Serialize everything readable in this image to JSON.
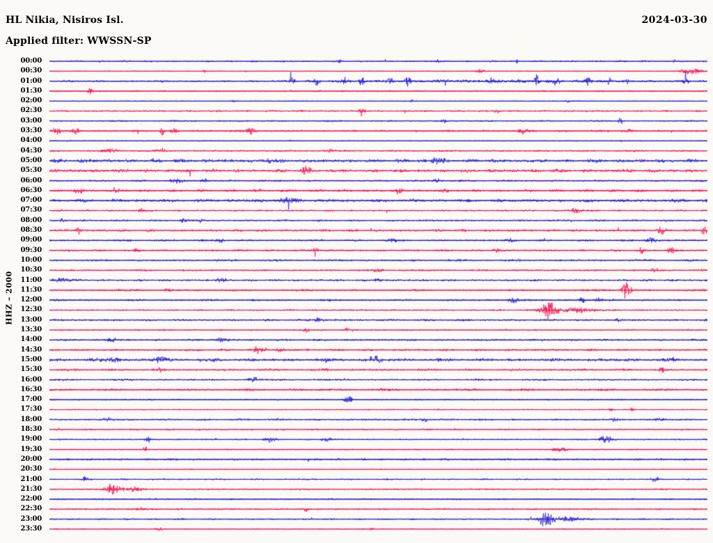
{
  "header": {
    "station_title": "HL Nikia, Nisiros Isl.",
    "filter_label": "Applied filter: WWSSN-SP",
    "date": "2024-03-30"
  },
  "axis": {
    "channel_label": "HHZ – 2000"
  },
  "palette": {
    "trace_blue": "#1812D2",
    "trace_red": "#F2094C",
    "background": "#FBFAF7",
    "text": "#000000"
  },
  "chart_data": {
    "type": "line",
    "subtype": "helicorder-seismogram",
    "title": "HL Nikia, Nisiros Isl.",
    "filter": "WWSSN-SP",
    "date": "2024-03-30",
    "channel": "HHZ",
    "gain_scale": "2000",
    "row_interval_minutes": 30,
    "x_range_minutes": [
      0,
      30
    ],
    "legend": "none",
    "grid": false,
    "alternating_trace_colors": [
      "blue",
      "red"
    ],
    "rows_note": "events are [position_fraction_along_row, peak_amplitude_px, gaussian_sigma_px]; noise is background noise half-amplitude in px",
    "rows": [
      {
        "time": "00:00",
        "color": "blue",
        "noise": 0.85,
        "events": [
          [
            0.44,
            1.8,
            2
          ],
          [
            0.59,
            1.6,
            2
          ],
          [
            0.71,
            1.6,
            2
          ],
          [
            0.95,
            1.4,
            2
          ]
        ]
      },
      {
        "time": "00:30",
        "color": "red",
        "noise": 0.45,
        "sp": 0.004,
        "events": [
          [
            0.235,
            1.6,
            2
          ],
          [
            0.655,
            2.2,
            5
          ],
          [
            0.975,
            3.5,
            11
          ]
        ]
      },
      {
        "time": "01:00",
        "color": "blue",
        "noise": 0.8,
        "sp": 0.008,
        "events": [
          [
            0.67,
            0.8,
            160
          ],
          [
            0.369,
            4,
            3
          ],
          [
            0.406,
            4.5,
            3
          ],
          [
            0.449,
            4,
            4
          ],
          [
            0.475,
            7,
            2
          ],
          [
            0.517,
            4,
            3
          ],
          [
            0.544,
            4.5,
            3
          ],
          [
            0.602,
            3.5,
            3
          ],
          [
            0.671,
            3.5,
            3
          ],
          [
            0.74,
            8,
            2
          ],
          [
            0.771,
            4,
            3
          ],
          [
            0.819,
            4.5,
            3
          ],
          [
            0.851,
            3.5,
            2
          ],
          [
            0.877,
            4,
            2
          ],
          [
            0.967,
            3.5,
            3
          ]
        ]
      },
      {
        "time": "01:30",
        "color": "red",
        "noise": 0.75,
        "events": [
          [
            0.062,
            3,
            3
          ]
        ]
      },
      {
        "time": "02:00",
        "color": "blue",
        "noise": 0.45,
        "events": [
          [
            0.28,
            1.5,
            2
          ],
          [
            0.55,
            1.3,
            2
          ],
          [
            0.79,
            1.8,
            3
          ]
        ]
      },
      {
        "time": "02:30",
        "color": "red",
        "noise": 0.85,
        "events": [
          [
            0.475,
            2.4,
            4
          ],
          [
            0.68,
            2.8,
            3
          ]
        ]
      },
      {
        "time": "03:00",
        "color": "blue",
        "noise": 0.75,
        "events": [
          [
            0.6,
            1.5,
            3
          ],
          [
            0.868,
            4,
            2
          ]
        ]
      },
      {
        "time": "03:30",
        "color": "red",
        "noise": 0.9,
        "sp": 0.004,
        "events": [
          [
            0.012,
            3,
            5
          ],
          [
            0.04,
            3.2,
            4
          ],
          [
            0.171,
            7,
            1.5
          ],
          [
            0.19,
            3,
            3
          ],
          [
            0.305,
            3.5,
            5
          ],
          [
            0.72,
            3,
            5
          ],
          [
            0.88,
            2,
            4
          ]
        ]
      },
      {
        "time": "04:00",
        "color": "blue",
        "noise": 0.5,
        "events": []
      },
      {
        "time": "04:30",
        "color": "red",
        "noise": 0.85,
        "events": [
          [
            0.095,
            2.5,
            7
          ],
          [
            0.17,
            2.5,
            5
          ],
          [
            0.425,
            2,
            4
          ]
        ]
      },
      {
        "time": "05:00",
        "color": "blue",
        "noise": 1.6,
        "events": [
          [
            0.33,
            2,
            6
          ],
          [
            0.59,
            3,
            8
          ]
        ]
      },
      {
        "time": "05:30",
        "color": "red",
        "noise": 1.5,
        "events": [
          [
            0.39,
            2.5,
            6
          ]
        ]
      },
      {
        "time": "06:00",
        "color": "blue",
        "noise": 0.85,
        "events": [
          [
            0.19,
            2.5,
            5
          ],
          [
            0.235,
            2.5,
            4
          ],
          [
            0.59,
            2,
            4
          ]
        ]
      },
      {
        "time": "06:30",
        "color": "red",
        "noise": 1.2,
        "events": [
          [
            0.045,
            2.5,
            5
          ],
          [
            0.1,
            2.5,
            4
          ],
          [
            0.53,
            3,
            4
          ],
          [
            0.6,
            2.5,
            3
          ]
        ]
      },
      {
        "time": "07:00",
        "color": "blue",
        "noise": 1.5,
        "events": [
          [
            0.36,
            3,
            9
          ]
        ]
      },
      {
        "time": "07:30",
        "color": "red",
        "noise": 0.85,
        "events": [
          [
            0.14,
            2,
            4
          ],
          [
            0.8,
            2.5,
            7
          ]
        ]
      },
      {
        "time": "08:00",
        "color": "blue",
        "noise": 0.9,
        "events": [
          [
            0.02,
            2.5,
            3
          ],
          [
            0.205,
            2,
            4
          ],
          [
            0.23,
            2,
            3
          ]
        ]
      },
      {
        "time": "08:30",
        "color": "red",
        "noise": 1.2,
        "sp": 0.004,
        "events": [
          [
            0.045,
            4,
            3
          ],
          [
            0.93,
            3,
            4
          ],
          [
            0.995,
            4,
            3
          ]
        ]
      },
      {
        "time": "09:00",
        "color": "blue",
        "noise": 0.9,
        "events": [
          [
            0.26,
            2,
            4
          ],
          [
            0.52,
            2,
            5
          ],
          [
            0.7,
            2.5,
            5
          ],
          [
            0.915,
            3,
            5
          ]
        ]
      },
      {
        "time": "09:30",
        "color": "red",
        "noise": 0.9,
        "events": [
          [
            0.135,
            2,
            3
          ],
          [
            0.405,
            2.5,
            4
          ],
          [
            0.68,
            2,
            4
          ],
          [
            0.9,
            3,
            3
          ],
          [
            0.945,
            3.5,
            4
          ]
        ]
      },
      {
        "time": "10:00",
        "color": "blue",
        "noise": 1.05,
        "events": []
      },
      {
        "time": "10:30",
        "color": "red",
        "noise": 0.9,
        "events": [
          [
            0.5,
            2.5,
            5
          ],
          [
            0.92,
            2.5,
            4
          ]
        ]
      },
      {
        "time": "11:00",
        "color": "blue",
        "noise": 1.0,
        "events": [
          [
            0.02,
            2,
            8
          ],
          [
            0.26,
            2.5,
            5
          ],
          [
            0.5,
            2.5,
            4
          ]
        ]
      },
      {
        "time": "11:30",
        "color": "red",
        "noise": 1.0,
        "events": [
          [
            0.18,
            2,
            5
          ],
          [
            0.877,
            10,
            4
          ]
        ]
      },
      {
        "time": "12:00",
        "color": "blue",
        "noise": 0.9,
        "events": [
          [
            0.705,
            3,
            5
          ],
          [
            0.81,
            2.5,
            4
          ],
          [
            0.835,
            2.5,
            3
          ]
        ]
      },
      {
        "time": "12:30",
        "color": "red",
        "noise": 0.85,
        "events": [
          [
            0.76,
            11,
            8
          ],
          [
            0.8,
            2.5,
            20
          ]
        ]
      },
      {
        "time": "13:00",
        "color": "blue",
        "noise": 1.0,
        "events": [
          [
            0.41,
            2.5,
            5
          ],
          [
            0.865,
            2.5,
            3
          ]
        ]
      },
      {
        "time": "13:30",
        "color": "red",
        "noise": 0.8,
        "events": [
          [
            0.39,
            2,
            4
          ],
          [
            0.455,
            2,
            4
          ]
        ]
      },
      {
        "time": "14:00",
        "color": "blue",
        "noise": 0.9,
        "events": [
          [
            0.095,
            2,
            5
          ],
          [
            0.26,
            2.5,
            7
          ]
        ]
      },
      {
        "time": "14:30",
        "color": "red",
        "noise": 1.0,
        "events": [
          [
            0.315,
            3.5,
            5
          ],
          [
            0.35,
            2.5,
            4
          ]
        ]
      },
      {
        "time": "15:00",
        "color": "blue",
        "noise": 1.5,
        "events": [
          [
            0.1,
            2,
            6
          ],
          [
            0.17,
            2.5,
            7
          ],
          [
            0.495,
            3,
            6
          ]
        ]
      },
      {
        "time": "15:30",
        "color": "red",
        "noise": 1.1,
        "events": [
          [
            0.17,
            3,
            3
          ],
          [
            0.42,
            2.5,
            4
          ],
          [
            0.93,
            2.5,
            4
          ]
        ]
      },
      {
        "time": "16:00",
        "color": "blue",
        "noise": 0.9,
        "events": [
          [
            0.31,
            2.5,
            6
          ]
        ]
      },
      {
        "time": "16:30",
        "color": "red",
        "noise": 1.1,
        "events": []
      },
      {
        "time": "17:00",
        "color": "blue",
        "noise": 0.7,
        "events": [
          [
            0.455,
            2.5,
            5
          ]
        ]
      },
      {
        "time": "17:30",
        "color": "red",
        "noise": 0.55,
        "events": [
          [
            0.855,
            2,
            3
          ],
          [
            0.885,
            2,
            3
          ]
        ]
      },
      {
        "time": "18:00",
        "color": "blue",
        "noise": 0.9,
        "events": [
          [
            0.09,
            2,
            5
          ],
          [
            0.57,
            2,
            4
          ],
          [
            0.86,
            2,
            4
          ],
          [
            0.93,
            2,
            5
          ]
        ]
      },
      {
        "time": "18:30",
        "color": "red",
        "noise": 0.8,
        "events": []
      },
      {
        "time": "19:00",
        "color": "blue",
        "noise": 0.65,
        "events": [
          [
            0.15,
            2.5,
            3
          ],
          [
            0.335,
            3,
            5
          ],
          [
            0.42,
            3,
            5
          ],
          [
            0.845,
            3.5,
            7
          ]
        ]
      },
      {
        "time": "19:30",
        "color": "red",
        "noise": 0.55,
        "events": [
          [
            0.145,
            2.5,
            3
          ],
          [
            0.775,
            3,
            7
          ]
        ]
      },
      {
        "time": "20:00",
        "color": "blue",
        "noise": 1.0,
        "events": []
      },
      {
        "time": "20:30",
        "color": "red",
        "noise": 0.5,
        "events": []
      },
      {
        "time": "21:00",
        "color": "blue",
        "noise": 0.7,
        "events": [
          [
            0.055,
            2,
            4
          ],
          [
            0.92,
            2,
            4
          ]
        ]
      },
      {
        "time": "21:30",
        "color": "red",
        "noise": 0.75,
        "events": [
          [
            0.095,
            5.5,
            8
          ],
          [
            0.125,
            3.5,
            7
          ]
        ]
      },
      {
        "time": "22:00",
        "color": "blue",
        "noise": 0.75,
        "events": []
      },
      {
        "time": "22:30",
        "color": "red",
        "noise": 0.75,
        "events": [
          [
            0.14,
            2.5,
            4
          ],
          [
            0.39,
            2,
            3
          ]
        ]
      },
      {
        "time": "23:00",
        "color": "blue",
        "noise": 0.75,
        "events": [
          [
            0.755,
            9.5,
            7
          ],
          [
            0.79,
            2.5,
            14
          ]
        ]
      },
      {
        "time": "23:30",
        "color": "red",
        "noise": 0.55,
        "events": [
          [
            0.165,
            2,
            4
          ],
          [
            0.49,
            1.5,
            3
          ]
        ]
      }
    ]
  }
}
